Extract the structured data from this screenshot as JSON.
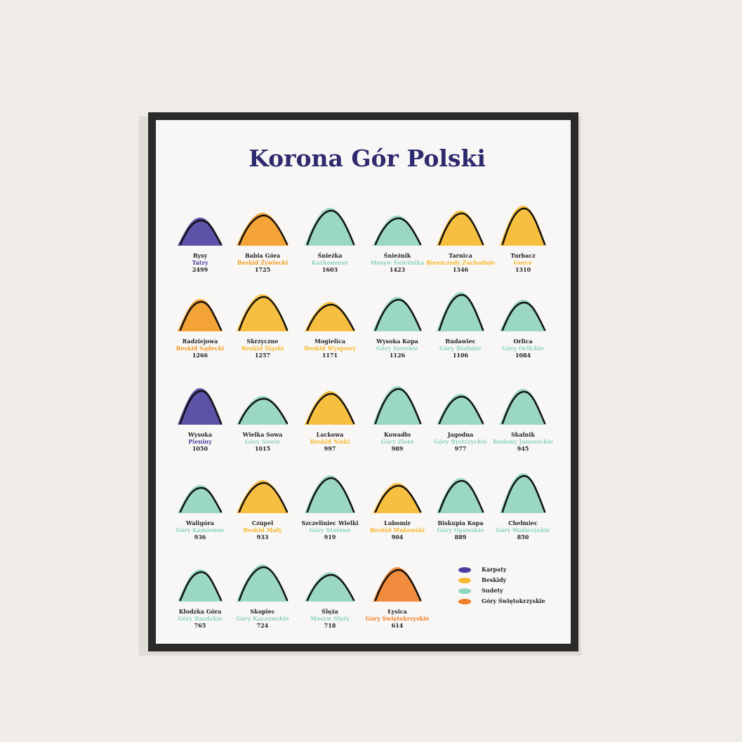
{
  "title": "Korona Gór Polski",
  "peaks": [
    {
      "name": "Rysy",
      "range": "Tatry",
      "height": 2499,
      "color": "#4a3f9f"
    },
    {
      "name": "Babia Góra",
      "range": "Beskid Żywiecki",
      "height": 1725,
      "color": "#f39a22"
    },
    {
      "name": "Śnieżka",
      "range": "Karkonosze",
      "height": 1603,
      "color": "#8fd4bd"
    },
    {
      "name": "Śnieżnik",
      "range": "Masyw Śnieżnika",
      "height": 1423,
      "color": "#8fd4bd"
    },
    {
      "name": "Tarnica",
      "range": "Bieszczady Zachodnie",
      "height": 1346,
      "color": "#f6b82c"
    },
    {
      "name": "Turbacz",
      "range": "Gorce",
      "height": 1310,
      "color": "#f6b82c"
    },
    {
      "name": "Radziejowa",
      "range": "Beskid Sądecki",
      "height": 1266,
      "color": "#f39a22"
    },
    {
      "name": "Skrzyczne",
      "range": "Beskid Śląski",
      "height": 1257,
      "color": "#f6b82c"
    },
    {
      "name": "Mogielica",
      "range": "Beskid Wyspowy",
      "height": 1171,
      "color": "#f6b82c"
    },
    {
      "name": "Wysoka Kopa",
      "range": "Góry Izerskie",
      "height": 1126,
      "color": "#8fd4bd"
    },
    {
      "name": "Rudawiec",
      "range": "Góry Bialskie",
      "height": 1106,
      "color": "#8fd4bd"
    },
    {
      "name": "Orlica",
      "range": "Góry Orlickie",
      "height": 1084,
      "color": "#8fd4bd"
    },
    {
      "name": "Wysoka",
      "range": "Pieniny",
      "height": 1050,
      "color": "#4a3f9f"
    },
    {
      "name": "Wielka Sowa",
      "range": "Góry Sowie",
      "height": 1015,
      "color": "#8fd4bd"
    },
    {
      "name": "Lackowa",
      "range": "Beskid Niski",
      "height": 997,
      "color": "#f6b82c"
    },
    {
      "name": "Kowadło",
      "range": "Góry Złote",
      "height": 989,
      "color": "#8fd4bd"
    },
    {
      "name": "Jagodna",
      "range": "Góry Bystrzyckie",
      "height": 977,
      "color": "#8fd4bd"
    },
    {
      "name": "Skalnik",
      "range": "Rudawy Janowickie",
      "height": 945,
      "color": "#8fd4bd"
    },
    {
      "name": "Waligóra",
      "range": "Góry Kamienne",
      "height": 936,
      "color": "#8fd4bd"
    },
    {
      "name": "Czupel",
      "range": "Beskid Mały",
      "height": 933,
      "color": "#f6b82c"
    },
    {
      "name": "Szczeliniec Wielki",
      "range": "Góry Stołowe",
      "height": 919,
      "color": "#8fd4bd"
    },
    {
      "name": "Lubomir",
      "range": "Beskid Makowski",
      "height": 904,
      "color": "#f6b82c"
    },
    {
      "name": "Biskupia Kopa",
      "range": "Góry Opawskie",
      "height": 889,
      "color": "#8fd4bd"
    },
    {
      "name": "Chełmiec",
      "range": "Góry Wałbrzyskie",
      "height": 850,
      "color": "#8fd4bd"
    },
    {
      "name": "Kłodzka Góra",
      "range": "Góry Bardzkie",
      "height": 765,
      "color": "#8fd4bd"
    },
    {
      "name": "Skopiec",
      "range": "Góry Kaczawskie",
      "height": 724,
      "color": "#8fd4bd"
    },
    {
      "name": "Ślęża",
      "range": "Masyw Ślęży",
      "height": 718,
      "color": "#8fd4bd"
    },
    {
      "name": "Łysica",
      "range": "Góry Świętokrzyskie",
      "height": 614,
      "color": "#f07f2a"
    }
  ],
  "legend": [
    {
      "label": "Karpaty",
      "color": "#4a3f9f"
    },
    {
      "label": "Beskidy",
      "color": "#f6b82c"
    },
    {
      "label": "Sudety",
      "color": "#8fd4bd"
    },
    {
      "label": "Góry Świętokrzyskie",
      "color": "#f07f2a"
    }
  ]
}
